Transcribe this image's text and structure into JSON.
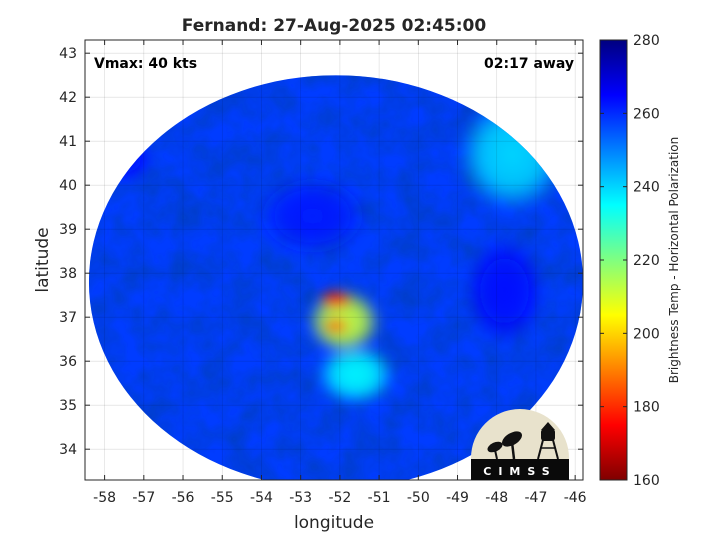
{
  "chart_data": {
    "type": "heatmap",
    "title": "Fernand: 27-Aug-2025 02:45:00",
    "xlabel": "longitude",
    "ylabel": "latitude",
    "xlim": [
      -58.5,
      -45.8
    ],
    "ylim": [
      33.3,
      43.3
    ],
    "x_ticks": [
      -58,
      -57,
      -56,
      -55,
      -54,
      -53,
      -52,
      -51,
      -50,
      -49,
      -48,
      -47,
      -46
    ],
    "y_ticks": [
      34,
      35,
      36,
      37,
      38,
      39,
      40,
      41,
      42,
      43
    ],
    "grid": true,
    "annotations": {
      "vmax": "Vmax: 40 kts",
      "time_away": "02:17 away"
    },
    "colorbar": {
      "label": "Brightness Temp - Horizontal Polarization",
      "range": [
        160,
        280
      ],
      "ticks": [
        160,
        180,
        200,
        220,
        240,
        260,
        280
      ],
      "colormap": "jet",
      "colors": [
        "#7f0000",
        "#ff0000",
        "#ff8000",
        "#ffff00",
        "#80ff80",
        "#00ffff",
        "#0080ff",
        "#0000ff",
        "#000080"
      ]
    },
    "swath": {
      "center": [
        -52.1,
        37.8
      ],
      "radius_deg_lon": 6.3,
      "radius_deg_lat": 4.7,
      "background_temp": 258,
      "features": [
        {
          "lon": -51.9,
          "lat": 36.9,
          "rlon": 0.95,
          "rlat": 0.75,
          "temp": 212
        },
        {
          "lon": -52.1,
          "lat": 37.4,
          "rlon": 0.45,
          "rlat": 0.22,
          "temp": 178
        },
        {
          "lon": -52.1,
          "lat": 36.8,
          "rlon": 0.35,
          "rlat": 0.18,
          "temp": 184
        },
        {
          "lon": -51.6,
          "lat": 35.7,
          "rlon": 1.0,
          "rlat": 0.7,
          "temp": 236
        },
        {
          "lon": -47.6,
          "lat": 40.7,
          "rlon": 1.4,
          "rlat": 1.3,
          "temp": 240
        },
        {
          "lon": -52.7,
          "lat": 39.3,
          "rlon": 1.4,
          "rlat": 0.9,
          "temp": 262
        },
        {
          "lon": -57.5,
          "lat": 40.6,
          "rlon": 0.7,
          "rlat": 0.5,
          "temp": 264
        },
        {
          "lon": -47.8,
          "lat": 37.6,
          "rlon": 1.0,
          "rlat": 1.2,
          "temp": 264
        }
      ]
    }
  },
  "logo": {
    "text": "CIMSS"
  }
}
